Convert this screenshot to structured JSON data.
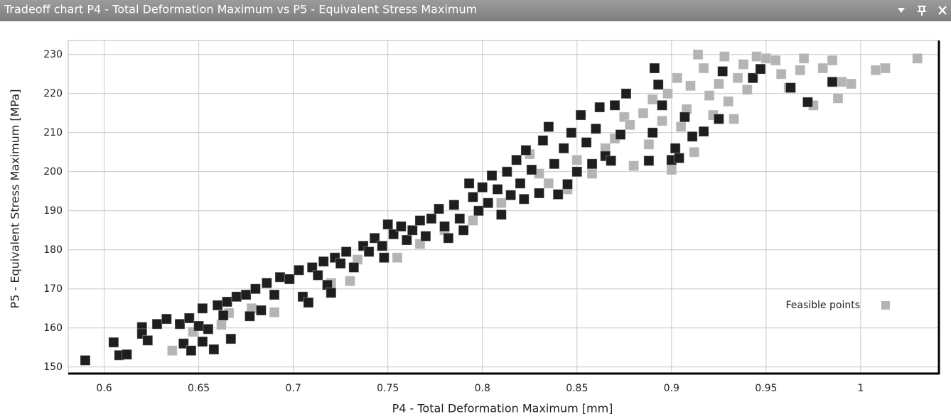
{
  "chart_data": {
    "type": "scatter",
    "title": "Tradeoff chart P4 - Total Deformation Maximum vs P5 - Equivalent Stress Maximum",
    "x_label": "P4 - Total Deformation Maximum  [mm]",
    "y_label": "P5 - Equivalent Stress Maximum  [MPa]",
    "xlim": [
      0.581,
      1.041
    ],
    "ylim": [
      148.5,
      233.6
    ],
    "xticks": [
      0.6,
      0.65,
      0.7,
      0.75,
      0.8,
      0.85,
      0.9,
      0.95,
      1
    ],
    "yticks": [
      150,
      160,
      170,
      180,
      190,
      200,
      210,
      220,
      230
    ],
    "grid": true,
    "legend": "right",
    "series": [
      {
        "name": "Feasible points",
        "color": "#b4b4b4",
        "x": [
          0.636,
          0.647,
          0.662,
          0.666,
          0.678,
          0.69,
          0.72,
          0.73,
          0.734,
          0.755,
          0.767,
          0.78,
          0.795,
          0.81,
          0.825,
          0.83,
          0.835,
          0.845,
          0.85,
          0.858,
          0.865,
          0.87,
          0.875,
          0.878,
          0.88,
          0.885,
          0.888,
          0.89,
          0.895,
          0.898,
          0.9,
          0.903,
          0.905,
          0.908,
          0.91,
          0.912,
          0.914,
          0.917,
          0.92,
          0.922,
          0.925,
          0.928,
          0.93,
          0.933,
          0.935,
          0.938,
          0.94,
          0.945,
          0.95,
          0.955,
          0.958,
          0.962,
          0.968,
          0.97,
          0.975,
          0.98,
          0.985,
          0.988,
          0.99,
          0.995,
          1.008,
          1.013,
          1.03
        ],
        "values": [
          154.2,
          159,
          160.8,
          163.8,
          165,
          164,
          171.5,
          172,
          177.5,
          178,
          181.5,
          185,
          187.5,
          192,
          204.5,
          199.5,
          197,
          195.5,
          203,
          199.5,
          206,
          208.5,
          214,
          212,
          201.5,
          215,
          207,
          218.5,
          213,
          220,
          200.5,
          224,
          211.5,
          216,
          222,
          205,
          230,
          226.5,
          219.5,
          214.5,
          222.5,
          229.5,
          218,
          213.5,
          224,
          227.5,
          221,
          229.5,
          229,
          228.5,
          225,
          221.5,
          226,
          229,
          217,
          226.5,
          228.5,
          218.8,
          223,
          222.5,
          226,
          226.5,
          229
        ]
      },
      {
        "color": "#1e1e1e",
        "x": [
          0.59,
          0.605,
          0.608,
          0.612,
          0.62,
          0.62,
          0.623,
          0.628,
          0.633,
          0.64,
          0.642,
          0.645,
          0.646,
          0.65,
          0.652,
          0.652,
          0.655,
          0.658,
          0.66,
          0.663,
          0.665,
          0.667,
          0.67,
          0.675,
          0.677,
          0.68,
          0.683,
          0.686,
          0.69,
          0.693,
          0.698,
          0.703,
          0.705,
          0.708,
          0.71,
          0.713,
          0.716,
          0.718,
          0.72,
          0.722,
          0.725,
          0.728,
          0.732,
          0.737,
          0.74,
          0.743,
          0.747,
          0.75,
          0.748,
          0.753,
          0.757,
          0.76,
          0.763,
          0.767,
          0.77,
          0.773,
          0.777,
          0.78,
          0.782,
          0.785,
          0.788,
          0.79,
          0.793,
          0.795,
          0.798,
          0.8,
          0.803,
          0.805,
          0.808,
          0.81,
          0.813,
          0.815,
          0.818,
          0.82,
          0.822,
          0.823,
          0.826,
          0.83,
          0.832,
          0.835,
          0.838,
          0.84,
          0.843,
          0.845,
          0.847,
          0.85,
          0.852,
          0.855,
          0.858,
          0.86,
          0.862,
          0.865,
          0.868,
          0.87,
          0.873,
          0.876,
          0.888,
          0.89,
          0.891,
          0.893,
          0.895,
          0.9,
          0.902,
          0.904,
          0.907,
          0.911,
          0.917,
          0.925,
          0.927,
          0.943,
          0.947,
          0.963,
          0.972,
          0.985
        ],
        "values": [
          151.7,
          156.3,
          153,
          153.2,
          160.2,
          158.5,
          156.8,
          161,
          162.3,
          161,
          156,
          162.5,
          154.2,
          160.5,
          165,
          156.5,
          159.7,
          154.5,
          165.8,
          163.2,
          166.7,
          157.2,
          168,
          168.5,
          163,
          170,
          164.5,
          171.5,
          168.5,
          173,
          172.5,
          174.8,
          168,
          166.5,
          175.5,
          173.5,
          177,
          171,
          169,
          178,
          176.5,
          179.5,
          175.5,
          181,
          179.5,
          183,
          181,
          186.5,
          178,
          184,
          186,
          182.5,
          185,
          187.5,
          183.5,
          188,
          190.5,
          186,
          183,
          191.5,
          188,
          185,
          197,
          193.5,
          190,
          196,
          192,
          199,
          195.5,
          189,
          200,
          194,
          203,
          197,
          193,
          205.5,
          200.5,
          194.5,
          208,
          211.5,
          202,
          194.2,
          206,
          196.8,
          210,
          200,
          214.5,
          207.5,
          202,
          211,
          216.5,
          204,
          202.8,
          217,
          209.5,
          220,
          202.8,
          210,
          226.5,
          222.3,
          217,
          203,
          206,
          203.5,
          214,
          209,
          210.3,
          213.5,
          225.7,
          224,
          226.3,
          221.5,
          217.8,
          223
        ]
      }
    ]
  }
}
